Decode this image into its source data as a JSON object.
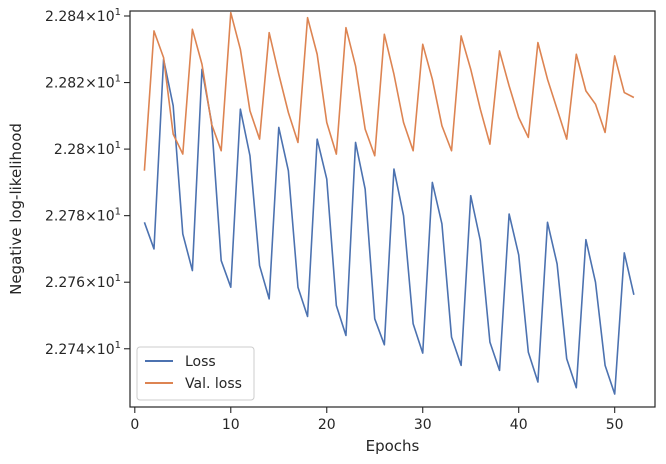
{
  "chart_data": {
    "type": "line",
    "xlabel": "Epochs",
    "ylabel": "Negative log-likelihood",
    "xlim": [
      -0.5,
      54.2
    ],
    "ylim": [
      22.7225,
      22.8415
    ],
    "x_ticks": [
      0,
      10,
      20,
      30,
      40,
      50
    ],
    "x_tick_labels": [
      "0",
      "10",
      "20",
      "30",
      "40",
      "50"
    ],
    "y_ticks": [
      22.74,
      22.76,
      22.78,
      22.8,
      22.82,
      22.84
    ],
    "y_tick_mantissas": [
      "2.274",
      "2.276",
      "2.278",
      "2.28",
      "2.282",
      "2.284"
    ],
    "y_tick_times": "×10",
    "y_tick_exponent": "1",
    "legend_position": "lower-left",
    "grid": false,
    "x": [
      1,
      2,
      3,
      4,
      5,
      6,
      7,
      8,
      9,
      10,
      11,
      12,
      13,
      14,
      15,
      16,
      17,
      18,
      19,
      20,
      21,
      22,
      23,
      24,
      25,
      26,
      27,
      28,
      29,
      30,
      31,
      32,
      33,
      34,
      35,
      36,
      37,
      38,
      39,
      40,
      41,
      42,
      43,
      44,
      45,
      46,
      47,
      48,
      49,
      50,
      51,
      52
    ],
    "series": [
      {
        "name": "Loss",
        "color": "#4c72b0",
        "values": [
          22.778,
          22.77,
          22.827,
          22.813,
          22.7745,
          22.7635,
          22.824,
          22.808,
          22.7665,
          22.7585,
          22.812,
          22.798,
          22.765,
          22.755,
          22.8065,
          22.7935,
          22.7585,
          22.7497,
          22.803,
          22.791,
          22.753,
          22.744,
          22.802,
          22.788,
          22.749,
          22.7412,
          22.794,
          22.78,
          22.7475,
          22.7387,
          22.79,
          22.7775,
          22.7435,
          22.735,
          22.786,
          22.7725,
          22.742,
          22.7335,
          22.7805,
          22.7682,
          22.739,
          22.73,
          22.778,
          22.7655,
          22.737,
          22.7283,
          22.7728,
          22.76,
          22.735,
          22.7264,
          22.7688,
          22.7562
        ]
      },
      {
        "name": "Val. loss",
        "color": "#dd8452",
        "values": [
          22.7935,
          22.8355,
          22.8275,
          22.8045,
          22.7985,
          22.836,
          22.8255,
          22.8075,
          22.7995,
          22.841,
          22.83,
          22.8115,
          22.803,
          22.835,
          22.8225,
          22.811,
          22.802,
          22.8395,
          22.8285,
          22.808,
          22.7985,
          22.8365,
          22.825,
          22.806,
          22.798,
          22.8345,
          22.8225,
          22.808,
          22.7995,
          22.8315,
          22.821,
          22.807,
          22.7995,
          22.834,
          22.824,
          22.812,
          22.8015,
          22.8295,
          22.819,
          22.8095,
          22.8035,
          22.832,
          22.821,
          22.812,
          22.803,
          22.8285,
          22.8175,
          22.8135,
          22.805,
          22.828,
          22.817,
          22.8155
        ]
      }
    ]
  }
}
